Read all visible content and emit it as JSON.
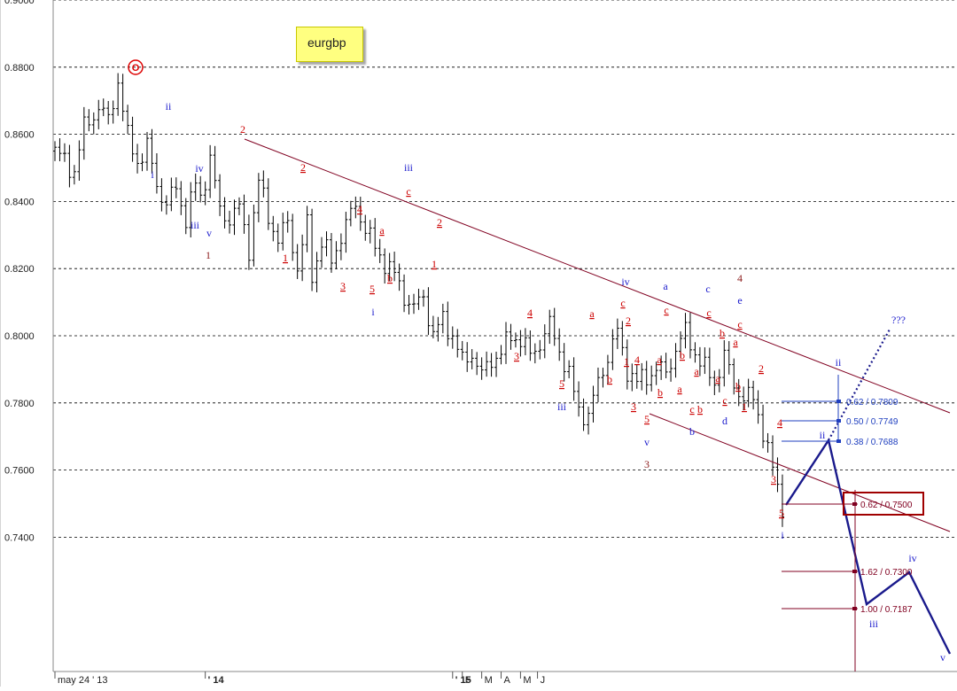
{
  "instrument_label": "eurgbp",
  "colors": {
    "background": "#ffffff",
    "bars": "#000000",
    "grid": "#000000",
    "channel": "#800020",
    "projection": "#1a1a8c",
    "fib_blue": "#1f3fbf",
    "fib_maroon": "#800020",
    "ew_red": "#cc0000",
    "ew_blue": "#1a1acc",
    "ew_maroon": "#8b1a1a",
    "note_bg": "#ffff80"
  },
  "chart_data": {
    "type": "ohlc",
    "title": "",
    "xlabel": "",
    "ylabel": "",
    "ylim": [
      0.7,
      0.9
    ],
    "grid": "horizontal-dashed",
    "y_ticks": [
      {
        "value": 0.9,
        "label": "0.9000"
      },
      {
        "value": 0.88,
        "label": "0.8800"
      },
      {
        "value": 0.86,
        "label": "0.8600"
      },
      {
        "value": 0.84,
        "label": "0.8400"
      },
      {
        "value": 0.82,
        "label": "0.8200"
      },
      {
        "value": 0.8,
        "label": "0.8000"
      },
      {
        "value": 0.78,
        "label": "0.7800"
      },
      {
        "value": 0.76,
        "label": "0.7600"
      },
      {
        "value": 0.74,
        "label": "0.7400"
      }
    ],
    "x_ticks": [
      {
        "week": 0,
        "label": "may 24 ' 13"
      },
      {
        "week": 31,
        "label": "' 14"
      },
      {
        "week": 82,
        "label": "' 15"
      },
      {
        "week": 84,
        "label": "F"
      },
      {
        "week": 88,
        "label": "M"
      },
      {
        "week": 92,
        "label": "A"
      },
      {
        "week": 96,
        "label": "M"
      },
      {
        "week": 99.5,
        "label": "J"
      }
    ],
    "price_anchors": [
      [
        0,
        0.855
      ],
      [
        4,
        0.849
      ],
      [
        6,
        0.862
      ],
      [
        9,
        0.868
      ],
      [
        11,
        0.864
      ],
      [
        13,
        0.876
      ],
      [
        15,
        0.859
      ],
      [
        17,
        0.852
      ],
      [
        19,
        0.856
      ],
      [
        21,
        0.845
      ],
      [
        23,
        0.839
      ],
      [
        25,
        0.844
      ],
      [
        27,
        0.835
      ],
      [
        29,
        0.845
      ],
      [
        30,
        0.841
      ],
      [
        32,
        0.853
      ],
      [
        34,
        0.837
      ],
      [
        36,
        0.835
      ],
      [
        38,
        0.838
      ],
      [
        40,
        0.826
      ],
      [
        42,
        0.846
      ],
      [
        44,
        0.836
      ],
      [
        46,
        0.828
      ],
      [
        48,
        0.834
      ],
      [
        50,
        0.82
      ],
      [
        52,
        0.833
      ],
      [
        53,
        0.818
      ],
      [
        55,
        0.828
      ],
      [
        57,
        0.822
      ],
      [
        59,
        0.83
      ],
      [
        62,
        0.839
      ],
      [
        64,
        0.832
      ],
      [
        66,
        0.826
      ],
      [
        68,
        0.822
      ],
      [
        70,
        0.818
      ],
      [
        72,
        0.812
      ],
      [
        74,
        0.808
      ],
      [
        76,
        0.812
      ],
      [
        78,
        0.8
      ],
      [
        80,
        0.805
      ],
      [
        82,
        0.8
      ],
      [
        84,
        0.792
      ],
      [
        86,
        0.795
      ],
      [
        88,
        0.788
      ],
      [
        90,
        0.793
      ],
      [
        92,
        0.795
      ],
      [
        94,
        0.8
      ],
      [
        96,
        0.799
      ],
      [
        98,
        0.794
      ],
      [
        100,
        0.798
      ],
      [
        102,
        0.803
      ],
      [
        104,
        0.796
      ],
      [
        106,
        0.788
      ],
      [
        108,
        0.778
      ],
      [
        110,
        0.776
      ],
      [
        112,
        0.786
      ],
      [
        114,
        0.794
      ],
      [
        116,
        0.801
      ],
      [
        118,
        0.79
      ],
      [
        120,
        0.786
      ],
      [
        122,
        0.788
      ],
      [
        124,
        0.79
      ],
      [
        126,
        0.789
      ],
      [
        128,
        0.796
      ],
      [
        130,
        0.801
      ],
      [
        132,
        0.795
      ],
      [
        134,
        0.79
      ],
      [
        136,
        0.786
      ],
      [
        138,
        0.794
      ],
      [
        140,
        0.785
      ],
      [
        142,
        0.782
      ],
      [
        144,
        0.781
      ],
      [
        146,
        0.772
      ],
      [
        148,
        0.76
      ],
      [
        150,
        0.749
      ]
    ],
    "annotations": [
      "O",
      "ii",
      "i",
      "iv",
      "iii",
      "v",
      "1",
      "2",
      "iii",
      "ii",
      "i",
      "iv",
      "v",
      "a",
      "b",
      "c",
      "d",
      "e",
      "4",
      "3",
      "5",
      "???"
    ],
    "fib_levels": [
      {
        "label": "0.62 / 0.7809",
        "value": 0.7809,
        "color": "blue"
      },
      {
        "label": "0.50 / 0.7749",
        "value": 0.7749,
        "color": "blue"
      },
      {
        "label": "0.38 / 0.7688",
        "value": 0.7688,
        "color": "blue"
      },
      {
        "label": "0.62 / 0.7500",
        "value": 0.75,
        "color": "maroon",
        "boxed": true
      },
      {
        "label": "1.62 / 0.7300",
        "value": 0.73,
        "color": "maroon"
      },
      {
        "label": "1.00 / 0.7187",
        "value": 0.7187,
        "color": "maroon"
      }
    ]
  }
}
